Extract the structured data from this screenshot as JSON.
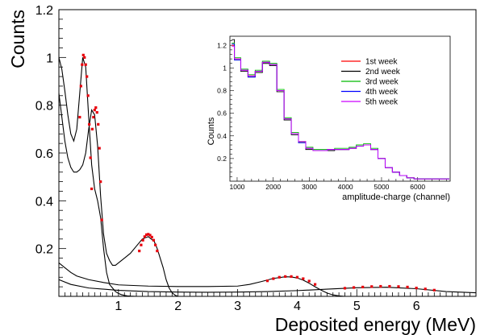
{
  "chart_data": [
    {
      "type": "scatter",
      "xlabel": "Deposited energy (MeV)",
      "ylabel": "Counts",
      "xlim": [
        0,
        7
      ],
      "ylim": [
        0,
        1.2
      ],
      "x_ticks": [
        1,
        2,
        3,
        4,
        5,
        6
      ],
      "x_tick_labels": [
        "1",
        "2",
        "3",
        "4",
        "5",
        "6"
      ],
      "y_ticks": [
        0.2,
        0.4,
        0.6,
        0.8,
        1.0,
        1.2
      ],
      "y_tick_labels": [
        "0.2",
        "0.4",
        "0.6",
        "0.8",
        "1",
        "1.2"
      ],
      "grid": false,
      "series": [
        {
          "color": "#000000",
          "style": "line",
          "x": [
            0.0,
            0.05,
            0.1,
            0.15,
            0.2,
            0.25,
            0.3,
            0.35,
            0.4,
            0.45,
            0.5,
            0.55,
            0.6,
            0.65,
            0.7,
            0.75,
            0.8,
            0.85,
            0.9,
            0.95,
            1.0,
            1.05,
            1.1,
            1.15,
            1.2,
            1.3
          ],
          "y": [
            1.0,
            0.95,
            0.86,
            0.76,
            0.68,
            0.65,
            0.7,
            0.85,
            1.0,
            0.96,
            0.75,
            0.55,
            0.45,
            0.4,
            0.33,
            0.2,
            0.1,
            0.05,
            0.035,
            0.02,
            0.012,
            0.007,
            0.004,
            0.002,
            0.001,
            0.0
          ]
        },
        {
          "color": "#000000",
          "style": "line",
          "x": [
            0.0,
            0.05,
            0.1,
            0.15,
            0.2,
            0.25,
            0.3,
            0.35,
            0.4,
            0.45,
            0.5,
            0.55,
            0.6,
            0.65,
            0.7,
            0.75,
            0.8,
            0.85,
            0.9,
            0.95,
            1.0,
            1.1,
            1.2,
            1.3,
            1.4,
            1.5,
            1.6,
            1.65,
            1.7,
            1.75,
            1.8,
            1.85,
            1.9,
            1.95,
            2.0
          ],
          "y": [
            0.85,
            0.75,
            0.65,
            0.58,
            0.54,
            0.52,
            0.52,
            0.53,
            0.55,
            0.6,
            0.7,
            0.78,
            0.76,
            0.63,
            0.42,
            0.26,
            0.18,
            0.15,
            0.13,
            0.13,
            0.14,
            0.16,
            0.18,
            0.21,
            0.24,
            0.25,
            0.23,
            0.2,
            0.16,
            0.12,
            0.07,
            0.035,
            0.015,
            0.005,
            0.0
          ]
        },
        {
          "color": "#000000",
          "style": "line",
          "x": [
            0.0,
            0.1,
            0.2,
            0.3,
            0.5,
            0.75,
            1.0,
            1.5,
            2.0,
            2.5,
            3.0,
            3.2,
            3.4,
            3.6,
            3.8,
            3.9,
            4.0,
            4.1,
            4.2,
            4.3,
            4.4,
            4.5,
            4.6,
            4.7,
            4.8
          ],
          "y": [
            0.14,
            0.12,
            0.1,
            0.085,
            0.07,
            0.058,
            0.048,
            0.043,
            0.041,
            0.041,
            0.043,
            0.05,
            0.062,
            0.075,
            0.082,
            0.081,
            0.077,
            0.068,
            0.055,
            0.04,
            0.026,
            0.014,
            0.006,
            0.002,
            0.0
          ]
        },
        {
          "color": "#000000",
          "style": "line",
          "x": [
            0.0,
            0.2,
            0.5,
            1.0,
            1.5,
            2.0,
            2.5,
            3.0,
            3.5,
            4.0,
            4.5,
            5.0,
            5.5,
            6.0,
            6.5,
            7.0
          ],
          "y": [
            0.07,
            0.05,
            0.035,
            0.025,
            0.02,
            0.018,
            0.017,
            0.018,
            0.02,
            0.024,
            0.03,
            0.036,
            0.038,
            0.032,
            0.02,
            0.015
          ]
        },
        {
          "color": "#e8000b",
          "style": "markers",
          "x": [
            0.35,
            0.37,
            0.39,
            0.41,
            0.43,
            0.45,
            0.47,
            0.49,
            0.51,
            0.53,
            0.55
          ],
          "y": [
            0.75,
            0.88,
            0.97,
            1.01,
            1.0,
            0.97,
            0.92,
            0.84,
            0.72,
            0.58,
            0.45
          ]
        },
        {
          "color": "#e8000b",
          "style": "markers",
          "x": [
            0.56,
            0.58,
            0.6,
            0.62,
            0.64,
            0.66,
            0.68,
            0.7,
            0.72
          ],
          "y": [
            0.7,
            0.75,
            0.78,
            0.79,
            0.77,
            0.72,
            0.62,
            0.48,
            0.32
          ]
        },
        {
          "color": "#e8000b",
          "style": "markers",
          "x": [
            1.35,
            1.38,
            1.41,
            1.44,
            1.47,
            1.5,
            1.53,
            1.56,
            1.59,
            1.62,
            1.65
          ],
          "y": [
            0.19,
            0.215,
            0.235,
            0.25,
            0.258,
            0.26,
            0.256,
            0.248,
            0.235,
            0.215,
            0.19
          ]
        },
        {
          "color": "#e8000b",
          "style": "markers",
          "x": [
            3.5,
            3.6,
            3.7,
            3.8,
            3.9,
            4.0,
            4.1,
            4.2,
            4.3
          ],
          "y": [
            0.065,
            0.074,
            0.08,
            0.083,
            0.083,
            0.08,
            0.074,
            0.064,
            0.05
          ]
        },
        {
          "color": "#e8000b",
          "style": "markers",
          "x": [
            4.8,
            4.95,
            5.1,
            5.25,
            5.4,
            5.55,
            5.7,
            5.85,
            6.0,
            6.15,
            6.3
          ],
          "y": [
            0.034,
            0.037,
            0.039,
            0.041,
            0.042,
            0.042,
            0.041,
            0.039,
            0.035,
            0.031,
            0.026
          ]
        }
      ]
    },
    {
      "type": "line",
      "xlabel": "amplitude-charge (channel)",
      "ylabel": "Counts",
      "xlim": [
        800,
        6900
      ],
      "ylim": [
        0,
        1.28
      ],
      "x_ticks": [
        1000,
        2000,
        3000,
        4000,
        5000,
        6000
      ],
      "x_tick_labels": [
        "1000",
        "2000",
        "3000",
        "4000",
        "5000",
        "6000"
      ],
      "y_ticks": [
        0.2,
        0.4,
        0.6,
        0.8,
        1.0,
        1.2
      ],
      "y_tick_labels": [
        "0.2",
        "0.4",
        "0.6",
        "0.8",
        "1",
        "1.2"
      ],
      "legend_position": "top-right",
      "x": [
        850,
        1000,
        1200,
        1400,
        1600,
        1800,
        2000,
        2200,
        2400,
        2600,
        2800,
        3000,
        3200,
        3400,
        3600,
        3800,
        4000,
        4200,
        4400,
        4600,
        4800,
        5000,
        5200,
        5400,
        5600,
        5800,
        6000,
        6200,
        6400,
        6600,
        6800
      ],
      "series": [
        {
          "name": "1st week",
          "color": "#ff0000",
          "values": [
            1.2,
            1.08,
            0.98,
            0.93,
            0.97,
            1.05,
            1.03,
            0.8,
            0.55,
            0.42,
            0.35,
            0.29,
            0.27,
            0.27,
            0.28,
            0.28,
            0.28,
            0.29,
            0.31,
            0.32,
            0.28,
            0.2,
            0.12,
            0.08,
            0.05,
            0.03,
            0.02,
            0.02,
            0.02,
            0.02,
            0.02
          ]
        },
        {
          "name": "2nd week",
          "color": "#000000",
          "values": [
            1.25,
            1.07,
            0.97,
            0.92,
            0.96,
            1.04,
            1.02,
            0.79,
            0.54,
            0.41,
            0.34,
            0.28,
            0.27,
            0.27,
            0.27,
            0.28,
            0.28,
            0.29,
            0.31,
            0.32,
            0.28,
            0.2,
            0.12,
            0.08,
            0.05,
            0.03,
            0.02,
            0.02,
            0.02,
            0.02,
            0.02
          ]
        },
        {
          "name": "3rd week",
          "color": "#00bb00",
          "values": [
            1.22,
            1.09,
            0.99,
            0.94,
            0.98,
            1.06,
            1.04,
            0.81,
            0.56,
            0.43,
            0.35,
            0.3,
            0.28,
            0.28,
            0.28,
            0.29,
            0.29,
            0.3,
            0.32,
            0.33,
            0.29,
            0.2,
            0.12,
            0.08,
            0.05,
            0.03,
            0.02,
            0.02,
            0.02,
            0.02,
            0.02
          ]
        },
        {
          "name": "4th week",
          "color": "#0000ff",
          "values": [
            1.21,
            1.07,
            0.98,
            0.92,
            0.97,
            1.05,
            1.03,
            0.8,
            0.55,
            0.42,
            0.34,
            0.29,
            0.27,
            0.27,
            0.28,
            0.28,
            0.28,
            0.29,
            0.31,
            0.32,
            0.28,
            0.2,
            0.12,
            0.08,
            0.05,
            0.03,
            0.02,
            0.02,
            0.02,
            0.02,
            0.02
          ]
        },
        {
          "name": "5th week",
          "color": "#cc00ff",
          "values": [
            1.19,
            1.08,
            0.98,
            0.93,
            0.97,
            1.05,
            1.03,
            0.8,
            0.55,
            0.42,
            0.35,
            0.29,
            0.27,
            0.27,
            0.28,
            0.28,
            0.28,
            0.29,
            0.31,
            0.32,
            0.28,
            0.2,
            0.12,
            0.08,
            0.05,
            0.03,
            0.02,
            0.02,
            0.02,
            0.02,
            0.02
          ]
        }
      ]
    }
  ]
}
